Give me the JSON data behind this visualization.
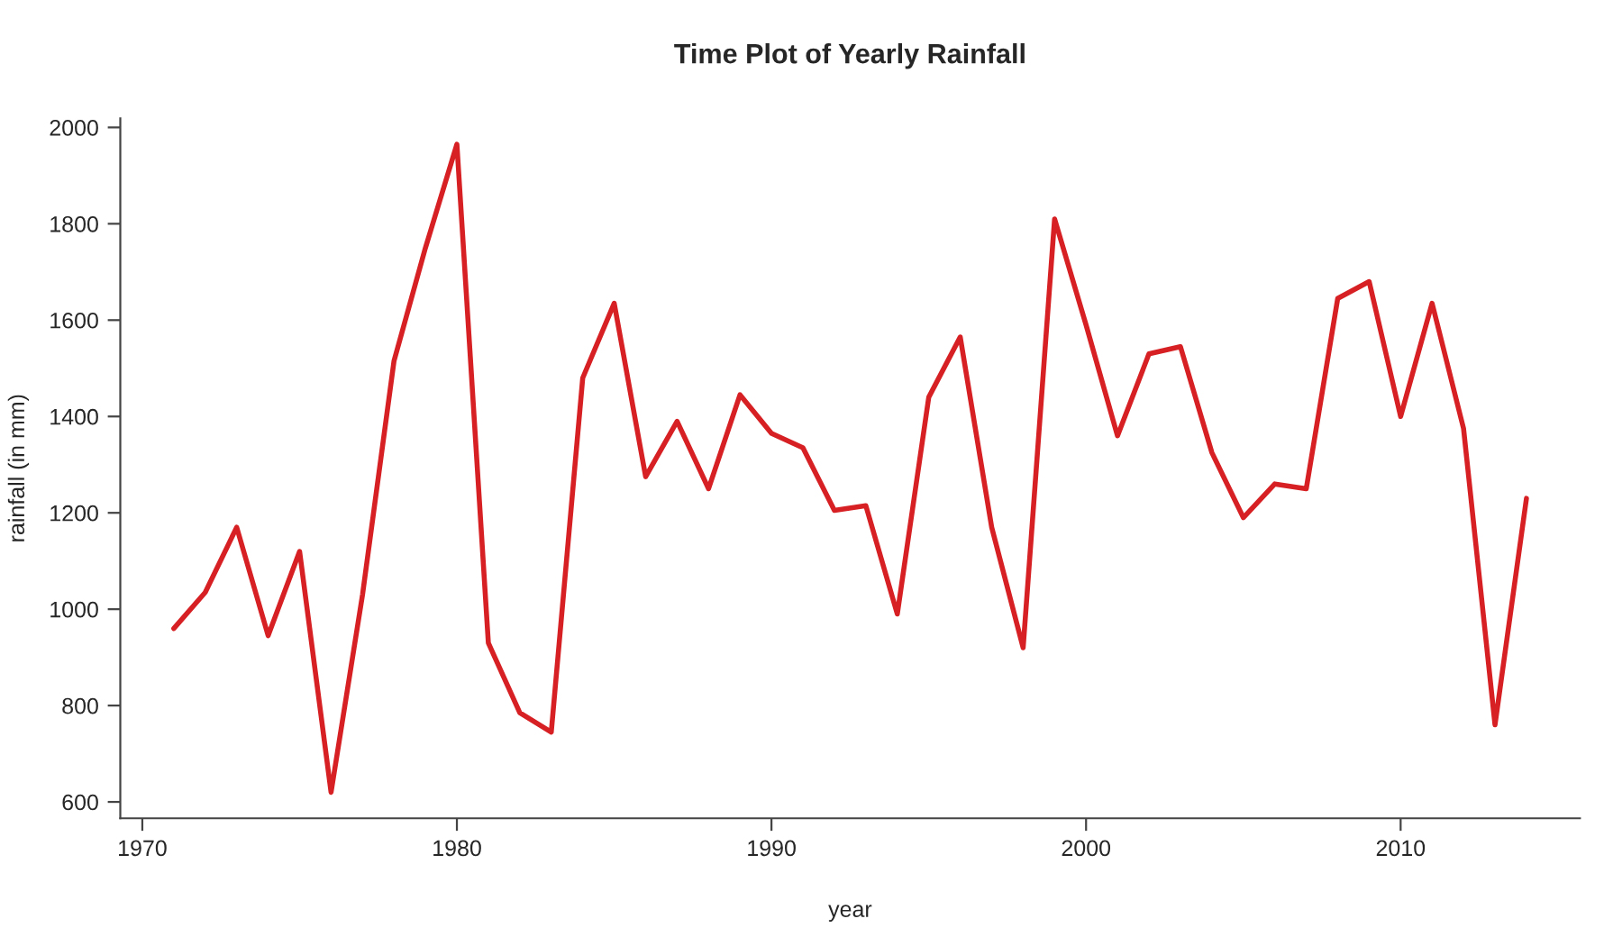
{
  "chart_data": {
    "type": "line",
    "title": "Time Plot of Yearly Rainfall",
    "xlabel": "year",
    "ylabel": "rainfall (in mm)",
    "x": [
      1971,
      1972,
      1973,
      1974,
      1975,
      1976,
      1977,
      1978,
      1979,
      1980,
      1981,
      1982,
      1983,
      1984,
      1985,
      1986,
      1987,
      1988,
      1989,
      1990,
      1991,
      1992,
      1993,
      1994,
      1995,
      1996,
      1997,
      1998,
      1999,
      2000,
      2001,
      2002,
      2003,
      2004,
      2005,
      2006,
      2007,
      2008,
      2009,
      2010,
      2011,
      2012,
      2013,
      2014
    ],
    "series": [
      {
        "color": "#d62023",
        "values": [
          960,
          1035,
          1170,
          945,
          1120,
          620,
          1030,
          1515,
          1750,
          1965,
          930,
          785,
          745,
          1480,
          1635,
          1275,
          1390,
          1250,
          1445,
          1365,
          1335,
          1205,
          1215,
          990,
          1440,
          1565,
          1170,
          920,
          1810,
          1590,
          1360,
          1530,
          1545,
          1325,
          1190,
          1260,
          1250,
          1645,
          1680,
          1400,
          1635,
          1375,
          760,
          1230
        ]
      }
    ],
    "xlim": [
      1969.3,
      2015.7
    ],
    "ylim": [
      566,
      2019
    ],
    "xticks": [
      1970,
      1980,
      1990,
      2000,
      2010
    ],
    "yticks": [
      600,
      800,
      1000,
      1200,
      1400,
      1600,
      1800,
      2000
    ],
    "grid": false,
    "legend": false,
    "marker": "none",
    "line_style": "solid"
  }
}
